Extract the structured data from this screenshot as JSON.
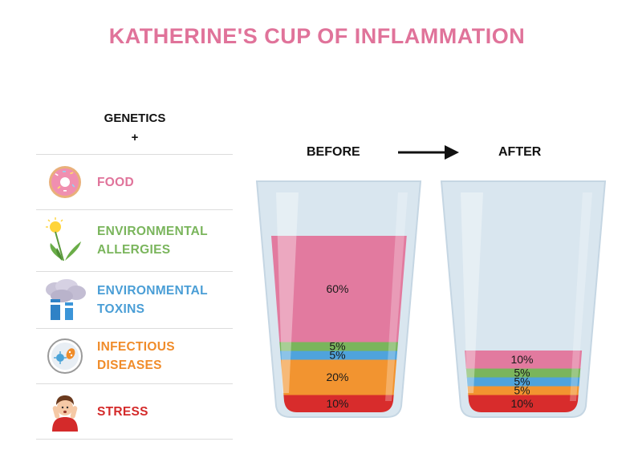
{
  "title": "KATHERINE'S CUP OF INFLAMMATION",
  "genetics": {
    "line1": "GENETICS",
    "line2": "+"
  },
  "factors": [
    {
      "label_lines": [
        "FOOD"
      ],
      "color": "#e0739a",
      "icon": "donut-icon"
    },
    {
      "label_lines": [
        "ENVIRONMENTAL",
        "ALLERGIES"
      ],
      "color": "#7ab55c",
      "icon": "dandelion-icon"
    },
    {
      "label_lines": [
        "ENVIRONMENTAL",
        "TOXINS"
      ],
      "color": "#4a9ed6",
      "icon": "smokestack-icon"
    },
    {
      "label_lines": [
        "INFECTIOUS",
        "DISEASES"
      ],
      "color": "#f08c2a",
      "icon": "microbe-icon"
    },
    {
      "label_lines": [
        "STRESS"
      ],
      "color": "#d42a2a",
      "icon": "stressed-person-icon"
    }
  ],
  "before_label": "BEFORE",
  "after_label": "AFTER",
  "chart_data": {
    "type": "stacked-cup",
    "categories": [
      "FOOD",
      "ENVIRONMENTAL ALLERGIES",
      "ENVIRONMENTAL TOXINS",
      "INFECTIOUS DISEASES",
      "STRESS"
    ],
    "colors": [
      "#e27a9f",
      "#7ab55c",
      "#4fa3dc",
      "#f29430",
      "#d82c2c"
    ],
    "series": [
      {
        "name": "BEFORE",
        "values": [
          60,
          5,
          5,
          20,
          10
        ],
        "labels": [
          "60%",
          "5%",
          "5%",
          "20%",
          "10%"
        ]
      },
      {
        "name": "AFTER",
        "values": [
          10,
          5,
          5,
          5,
          10
        ],
        "labels": [
          "10%",
          "5%",
          "5%",
          "5%",
          "10%"
        ]
      }
    ]
  }
}
